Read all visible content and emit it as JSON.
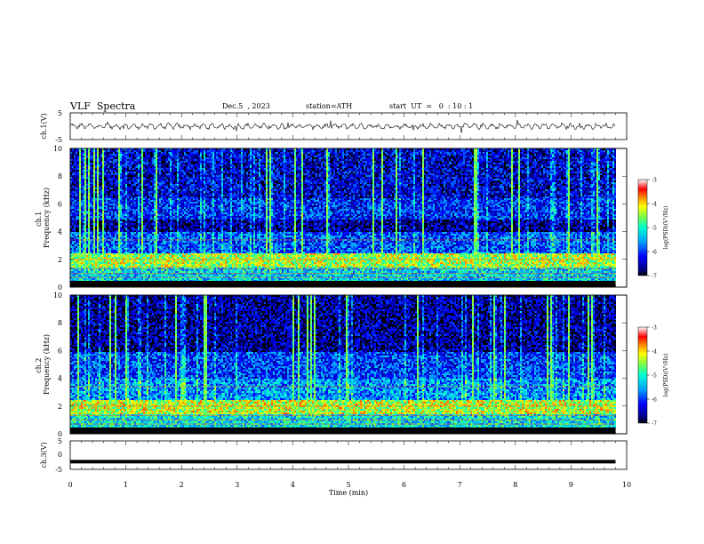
{
  "header": {
    "title": "VLF  Spectra",
    "date": "Dec.5  , 2023",
    "station": "station=ATH",
    "start": "start  UT  =   0  : 10 : 1"
  },
  "chart_data": [
    {
      "type": "line",
      "name": "ch1_waveform",
      "ylabel": "ch.1(V)",
      "ylim": [
        -5,
        5
      ],
      "yticks": [
        "5",
        "-5"
      ],
      "xlim": [
        0,
        10
      ],
      "x_data_end": 9.8,
      "approx_level": 0
    },
    {
      "type": "heatmap",
      "name": "ch1_spectrogram",
      "ylabel": "ch.1\nFrequency  (kHz)",
      "ylim": [
        0,
        10
      ],
      "yticks": [
        "0",
        "2",
        "4",
        "6",
        "8",
        "10"
      ],
      "xlim": [
        0,
        10
      ],
      "x_data_end": 9.8,
      "colorbar": {
        "label": "log(PSD)(V²/Hz)",
        "range": [
          -7,
          -3
        ],
        "ticks": [
          "-3",
          "-4",
          "-5",
          "-6",
          "-7"
        ]
      },
      "bands_khz": [
        {
          "low": 0.0,
          "high": 0.5,
          "level": -2.5
        },
        {
          "low": 0.5,
          "high": 1.5,
          "level": -5.3
        },
        {
          "low": 1.5,
          "high": 2.5,
          "level": -4.4
        },
        {
          "low": 2.5,
          "high": 4.0,
          "level": -5.9
        },
        {
          "low": 4.0,
          "high": 5.0,
          "level": -6.6
        },
        {
          "low": 5.0,
          "high": 6.5,
          "level": -6.1
        },
        {
          "low": 6.5,
          "high": 10.0,
          "level": -6.4
        }
      ]
    },
    {
      "type": "heatmap",
      "name": "ch2_spectrogram",
      "ylabel": "ch.2\nFrequency  (kHz)",
      "ylim": [
        0,
        10
      ],
      "yticks": [
        "0",
        "2",
        "4",
        "6",
        "8",
        "10"
      ],
      "xlim": [
        0,
        10
      ],
      "x_data_end": 9.8,
      "colorbar": {
        "label": "log(PSD)(V²/Hz)",
        "range": [
          -7,
          -3
        ],
        "ticks": [
          "-3",
          "-4",
          "-5",
          "-6",
          "-7"
        ]
      },
      "bands_khz": [
        {
          "low": 0.0,
          "high": 0.5,
          "level": -2.5
        },
        {
          "low": 0.5,
          "high": 1.5,
          "level": -5.2
        },
        {
          "low": 1.5,
          "high": 2.5,
          "level": -4.3
        },
        {
          "low": 2.5,
          "high": 4.0,
          "level": -5.6
        },
        {
          "low": 4.0,
          "high": 6.0,
          "level": -6.0
        },
        {
          "low": 6.0,
          "high": 10.0,
          "level": -6.6
        }
      ]
    },
    {
      "type": "line",
      "name": "ch3_waveform",
      "ylabel": "ch.3(V)",
      "ylim": [
        -5,
        5
      ],
      "yticks": [
        "5",
        "0",
        "-5"
      ],
      "xlim": [
        0,
        10
      ],
      "x_data_end": 9.8,
      "approx_level": -2.3
    }
  ],
  "xaxis": {
    "label": "Time  (min)",
    "ticks": [
      "0",
      "1",
      "2",
      "3",
      "4",
      "5",
      "6",
      "7",
      "8",
      "9",
      "10"
    ]
  },
  "colors": {
    "jet": [
      "#000080",
      "#0000ff",
      "#00a0ff",
      "#00ffd0",
      "#80ff40",
      "#ffff00",
      "#ff8000",
      "#ff0000",
      "#ffffff"
    ]
  }
}
